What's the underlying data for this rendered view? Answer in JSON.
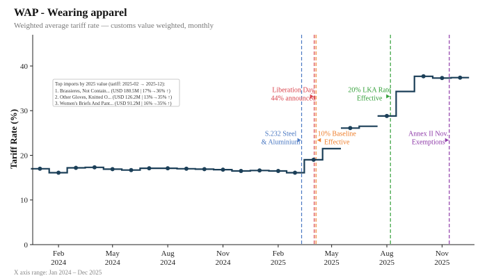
{
  "chart_data": {
    "type": "line",
    "style": "step",
    "title": "WAP - Wearing apparel",
    "subtitle": "Weighted average tariff rate — customs value weighted, monthly",
    "xlabel": "",
    "ylabel": "Tariff Rate (%)",
    "ylim": [
      0,
      47
    ],
    "yticks": [
      0,
      10,
      20,
      30,
      40
    ],
    "x_range": [
      "2023-12-20",
      "2025-12-25"
    ],
    "xticks": [
      {
        "date": "2024-02-01",
        "label": [
          "Feb",
          "2024"
        ]
      },
      {
        "date": "2024-05-01",
        "label": [
          "May",
          "2024"
        ]
      },
      {
        "date": "2024-08-01",
        "label": [
          "Aug",
          "2024"
        ]
      },
      {
        "date": "2024-11-01",
        "label": [
          "Nov",
          "2024"
        ]
      },
      {
        "date": "2025-02-01",
        "label": [
          "Feb",
          "2025"
        ]
      },
      {
        "date": "2025-05-01",
        "label": [
          "May",
          "2025"
        ]
      },
      {
        "date": "2025-08-01",
        "label": [
          "Aug",
          "2025"
        ]
      },
      {
        "date": "2025-11-01",
        "label": [
          "Nov",
          "2025"
        ]
      }
    ],
    "grid": false,
    "line_color": "#1b3f58",
    "series": [
      {
        "name": "Weighted average tariff rate",
        "x": [
          "2024-01-01",
          "2024-02-01",
          "2024-03-01",
          "2024-04-01",
          "2024-05-01",
          "2024-06-01",
          "2024-07-01",
          "2024-08-01",
          "2024-09-01",
          "2024-10-01",
          "2024-11-01",
          "2024-12-01",
          "2025-01-01",
          "2025-02-01",
          "2025-03-01",
          "2025-04-01",
          "2025-05-01",
          "2025-06-01",
          "2025-07-01",
          "2025-08-01",
          "2025-09-01",
          "2025-10-01",
          "2025-11-01",
          "2025-12-01"
        ],
        "values": [
          17.0,
          16.1,
          17.2,
          17.3,
          16.9,
          16.7,
          17.1,
          17.1,
          17.0,
          16.9,
          16.8,
          16.5,
          16.6,
          16.5,
          16.1,
          19.0,
          21.5,
          26.1,
          26.5,
          28.8,
          34.3,
          37.7,
          37.3,
          37.4
        ],
        "markers": [
          "2024-01-01",
          "2024-02-01",
          "2024-03-01",
          "2024-04-01",
          "2024-05-01",
          "2024-06-01",
          "2024-07-01",
          "2024-08-01",
          "2024-09-01",
          "2024-10-01",
          "2024-11-01",
          "2024-12-01",
          "2025-01-01",
          "2025-02-01",
          "2025-03-01",
          "2025-04-01",
          "2025-06-01",
          "2025-08-01",
          "2025-10-01",
          "2025-11-01",
          "2025-12-01"
        ],
        "gap_after": [
          "2025-05-01",
          "2025-07-01"
        ]
      }
    ],
    "events": [
      {
        "date": "2025-03-12",
        "color": "#4a78c2",
        "label": [
          "S.232 Steel",
          "& Aluminium"
        ],
        "label_y": 23.4,
        "label_side": "left"
      },
      {
        "date": "2025-04-02",
        "color": "#d9454e",
        "label": [
          "Liberation Day",
          "44% announced"
        ],
        "label_y": 33.2,
        "label_side": "left"
      },
      {
        "date": "2025-04-05",
        "color": "#ee7f2d",
        "label": [
          "10% Baseline",
          "Effective"
        ],
        "label_y": 23.4,
        "label_side": "right"
      },
      {
        "date": "2025-08-07",
        "color": "#34a03a",
        "label": [
          "20% LKA Rate",
          "Effective"
        ],
        "label_y": 33.2,
        "label_side": "left"
      },
      {
        "date": "2025-11-13",
        "color": "#8e3aa8",
        "label": [
          "Annex II Nov.",
          "Exemptions"
        ],
        "label_y": 23.4,
        "label_side": "left"
      }
    ],
    "legend": {
      "position": "top-left",
      "title": "Top imports by 2025 value (tariff: 2025-02 → 2025-12):",
      "items": [
        "1. Brassieres, Not Contain... (USD 180.5M | 17%→36% ↑)",
        "2. Other Gloves, Knitted O... (USD 126.2M | 13%→35% ↑)",
        "3. Women's Briefs And Pant... (USD 91.2M | 16%→35% ↑)"
      ]
    },
    "note": "X axis range: Jan 2024 – Dec 2025"
  }
}
